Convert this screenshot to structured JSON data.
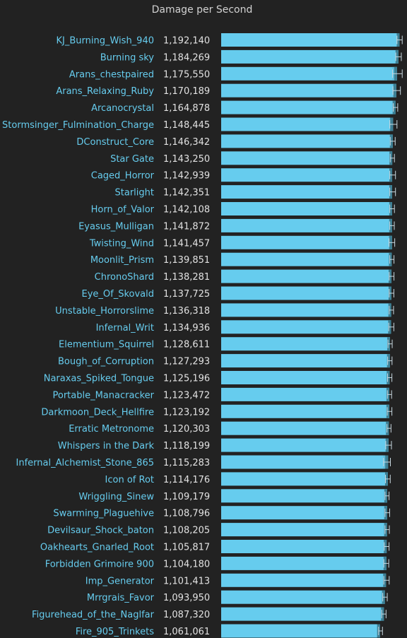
{
  "chart_data": {
    "type": "bar",
    "orientation": "horizontal",
    "title": "Damage per Second",
    "xlabel": "",
    "ylabel": "",
    "xlim": [
      0,
      1242000
    ],
    "grid": false,
    "legend": "none",
    "colors": {
      "background": "#222222",
      "bar": "#66ccee",
      "bar_band": "#56aecb",
      "bar_end": "#3d7f94",
      "error": "#c8d8e0",
      "label": "#66ccee",
      "value": "#e2e2e2",
      "title": "#d2d2d2"
    },
    "categories": [
      "KJ_Burning_Wish_940",
      "Burning sky",
      "Arans_chestpaired",
      "Arans_Relaxing_Ruby",
      "Arcanocrystal",
      "Stormsinger_Fulmination_Charge",
      "DConstruct_Core",
      "Star Gate",
      "Caged_Horror",
      "Starlight",
      "Horn_of_Valor",
      "Eyasus_Mulligan",
      "Twisting_Wind",
      "Moonlit_Prism",
      "ChronoShard",
      "Eye_Of_Skovald",
      "Unstable_Horrorslime",
      "Infernal_Writ",
      "Elementium_Squirrel",
      "Bough_of_Corruption",
      "Naraxas_Spiked_Tongue",
      "Portable_Manacracker",
      "Darkmoon_Deck_Hellfire",
      "Erratic Metronome",
      "Whispers in the Dark",
      "Infernal_Alchemist_Stone_865",
      "Icon of Rot",
      "Wriggling_Sinew",
      "Swarming_Plaguehive",
      "Devilsaur_Shock_baton",
      "Oakhearts_Gnarled_Root",
      "Forbidden Grimoire 900",
      "Imp_Generator",
      "Mrrgrais_Favor",
      "Figurehead_of_the_Naglfar",
      "Fire_905_Trinkets"
    ],
    "value_labels": [
      "1,192,140",
      "1,184,269",
      "1,175,550",
      "1,170,189",
      "1,164,878",
      "1,148,445",
      "1,146,342",
      "1,143,250",
      "1,142,939",
      "1,142,351",
      "1,142,108",
      "1,141,872",
      "1,141,457",
      "1,139,851",
      "1,138,281",
      "1,137,725",
      "1,136,318",
      "1,134,936",
      "1,128,611",
      "1,127,293",
      "1,125,196",
      "1,123,472",
      "1,123,192",
      "1,120,303",
      "1,118,199",
      "1,115,283",
      "1,114,176",
      "1,109,179",
      "1,108,796",
      "1,108,205",
      "1,105,817",
      "1,104,180",
      "1,101,413",
      "1,093,950",
      "1,087,320",
      "1,061,061"
    ],
    "values": [
      1192140,
      1184269,
      1175550,
      1170189,
      1164878,
      1148445,
      1146342,
      1143250,
      1142939,
      1142351,
      1142108,
      1141872,
      1141457,
      1139851,
      1138281,
      1137725,
      1136318,
      1134936,
      1128611,
      1127293,
      1125196,
      1123472,
      1123192,
      1120303,
      1118199,
      1115283,
      1114176,
      1109179,
      1108796,
      1108205,
      1105817,
      1104180,
      1101413,
      1093950,
      1087320,
      1061061
    ],
    "error_low": [
      1175000,
      1167000,
      1145000,
      1148000,
      1150000,
      1127000,
      1130000,
      1130000,
      1127000,
      1127000,
      1127000,
      1127000,
      1122000,
      1127000,
      1123000,
      1123000,
      1123000,
      1120000,
      1115000,
      1113000,
      1112000,
      1111000,
      1110000,
      1108000,
      1100000,
      1085000,
      1098000,
      1095000,
      1095000,
      1095000,
      1090000,
      1087000,
      1087000,
      1080000,
      1073000,
      1052000
    ],
    "error_high": [
      1210000,
      1204000,
      1210000,
      1198000,
      1180000,
      1175000,
      1163000,
      1158000,
      1165000,
      1165000,
      1158000,
      1157000,
      1160000,
      1155000,
      1155000,
      1154000,
      1152000,
      1154000,
      1143000,
      1142000,
      1141000,
      1139000,
      1141000,
      1135000,
      1138000,
      1131000,
      1130000,
      1122000,
      1126000,
      1124000,
      1122000,
      1120000,
      1123000,
      1110000,
      1102000,
      1078000
    ]
  }
}
